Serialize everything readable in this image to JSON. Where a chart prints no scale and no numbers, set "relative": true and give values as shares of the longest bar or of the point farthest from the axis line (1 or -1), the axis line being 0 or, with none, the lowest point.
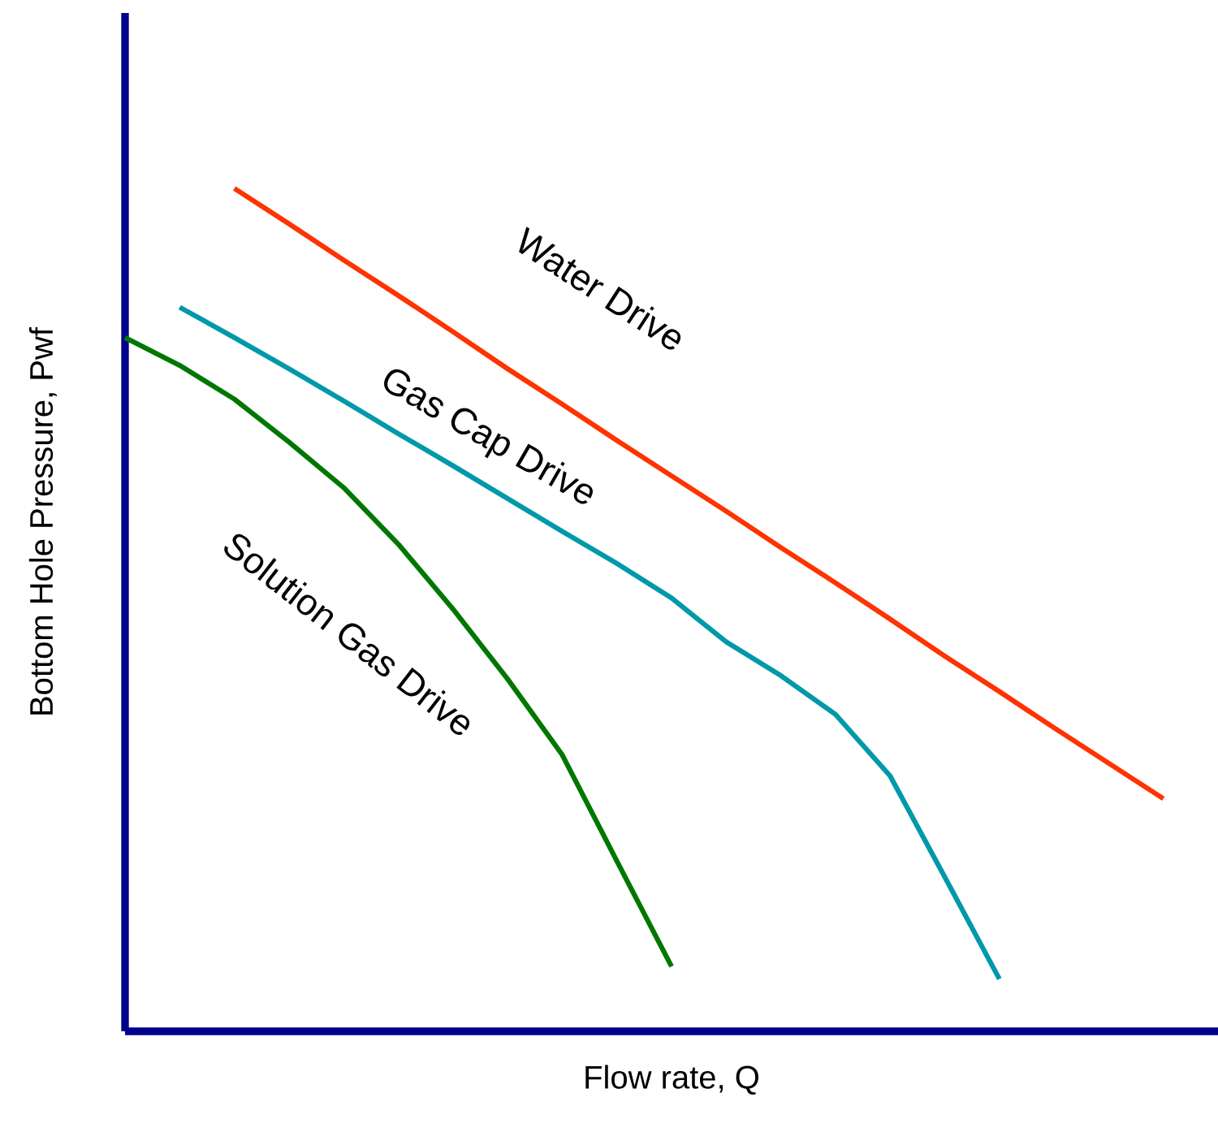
{
  "chart_data": {
    "type": "line",
    "relative": true,
    "xlabel": "Flow rate, Q",
    "ylabel": "Bottom Hole Pressure, Pwf",
    "tick_labels": false,
    "marker": "none",
    "line_style": "solid",
    "categories": [
      null,
      null,
      null,
      null,
      null,
      null,
      null,
      null,
      null,
      null,
      null,
      null,
      null,
      null,
      null,
      null,
      null,
      null,
      null,
      null,
      null
    ],
    "series": [
      {
        "name": "Water Drive",
        "color": "#ff3300",
        "values": [
          null,
          null,
          1,
          0.958,
          0.915,
          0.873,
          0.83,
          0.786,
          0.744,
          0.701,
          0.659,
          0.617,
          0.574,
          0.532,
          0.489,
          0.445,
          0.403,
          0.36,
          0.318,
          0.276,
          null
        ]
      },
      {
        "name": "Gas Cap Drive",
        "color": "#0099aa",
        "values": [
          null,
          0.859,
          0.823,
          0.786,
          0.748,
          0.709,
          0.671,
          0.632,
          0.593,
          0.555,
          0.514,
          0.462,
          0.422,
          0.376,
          0.303,
          0.183,
          0.062,
          null,
          null,
          null,
          null
        ]
      },
      {
        "name": "Solution Gas Drive",
        "color": "#007700",
        "values": [
          0.823,
          0.79,
          0.75,
          0.699,
          0.645,
          0.578,
          0.501,
          0.418,
          0.328,
          0.202,
          0.077,
          null,
          null,
          null,
          null,
          null,
          null,
          null,
          null,
          null,
          null
        ]
      }
    ]
  }
}
